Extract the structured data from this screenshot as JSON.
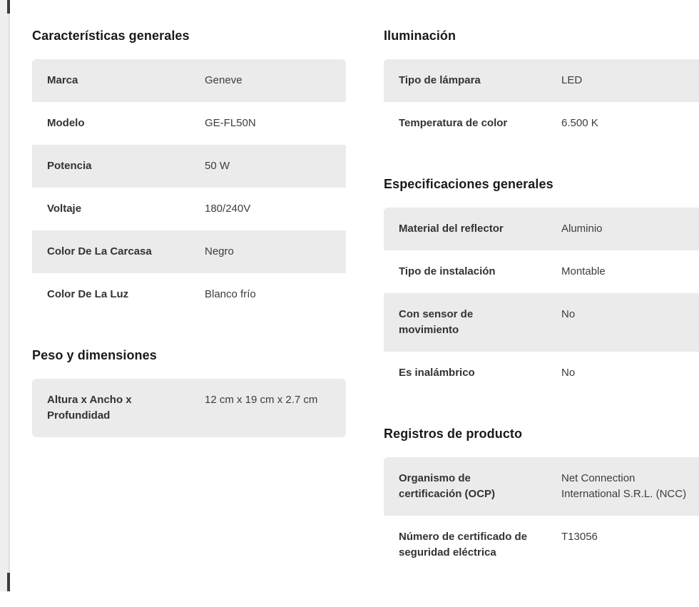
{
  "page": {
    "background": "#ffffff",
    "row_stripe_color": "#ebebeb",
    "heading_color": "#1a1a1a",
    "text_color": "#333333"
  },
  "sections": [
    {
      "title": "Características generales",
      "rows": [
        {
          "label": "Marca",
          "value": "Geneve"
        },
        {
          "label": "Modelo",
          "value": "GE-FL50N"
        },
        {
          "label": "Potencia",
          "value": "50 W"
        },
        {
          "label": "Voltaje",
          "value": "180/240V"
        },
        {
          "label": "Color De La Carcasa",
          "value": "Negro"
        },
        {
          "label": "Color De La Luz",
          "value": "Blanco frío"
        }
      ]
    },
    {
      "title": "Peso y dimensiones",
      "rows": [
        {
          "label": [
            "Altura x Ancho x",
            "Profundidad"
          ],
          "value": "12 cm x 19 cm x 2.7 cm"
        }
      ]
    },
    {
      "title": "Iluminación",
      "rows": [
        {
          "label": "Tipo de lámpara",
          "value": "LED"
        },
        {
          "label": "Temperatura de color",
          "value": "6.500 K"
        }
      ]
    },
    {
      "title": "Especificaciones generales",
      "rows": [
        {
          "label": "Material del reflector",
          "value": "Aluminio"
        },
        {
          "label": "Tipo de instalación",
          "value": "Montable"
        },
        {
          "label": [
            "Con sensor de",
            "movimiento"
          ],
          "value": "No"
        },
        {
          "label": "Es inalámbrico",
          "value": "No"
        }
      ]
    },
    {
      "title": "Registros de producto",
      "rows": [
        {
          "label": [
            "Organismo de",
            "certificación (OCP)"
          ],
          "value": [
            "Net Connection",
            "International S.R.L. (NCC)"
          ]
        },
        {
          "label": [
            "Número de certificado de",
            "seguridad eléctrica"
          ],
          "value": "T13056"
        }
      ]
    }
  ]
}
